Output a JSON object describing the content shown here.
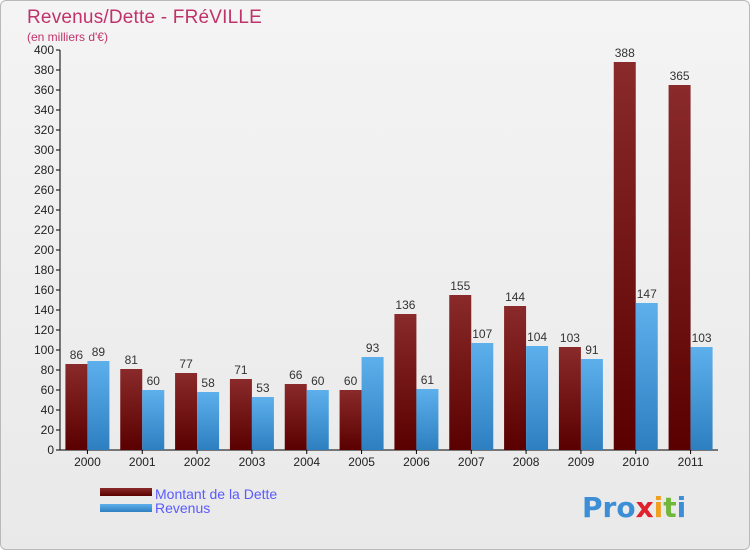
{
  "header": {
    "title": "Revenus/Dette - FRéVILLE",
    "subtitle": "(en milliers d'€)"
  },
  "chart_data": {
    "type": "bar",
    "title": "Revenus/Dette - FRéVILLE",
    "subtitle": "(en milliers d'€)",
    "xlabel": "",
    "ylabel": "",
    "ylim": [
      0,
      400
    ],
    "ytick_step": 20,
    "grid": false,
    "categories": [
      "2000",
      "2001",
      "2002",
      "2003",
      "2004",
      "2005",
      "2006",
      "2007",
      "2008",
      "2009",
      "2010",
      "2011"
    ],
    "series": [
      {
        "name": "Montant de la Dette",
        "color": "#7a1414",
        "values": [
          86,
          81,
          77,
          71,
          66,
          60,
          136,
          155,
          144,
          103,
          388,
          365
        ]
      },
      {
        "name": "Revenus",
        "color": "#3e98d9",
        "values": [
          89,
          60,
          58,
          53,
          60,
          93,
          61,
          107,
          104,
          91,
          147,
          103
        ]
      }
    ],
    "legend_position": "bottom-left"
  },
  "brand": {
    "logo_text": "Proxiti"
  }
}
